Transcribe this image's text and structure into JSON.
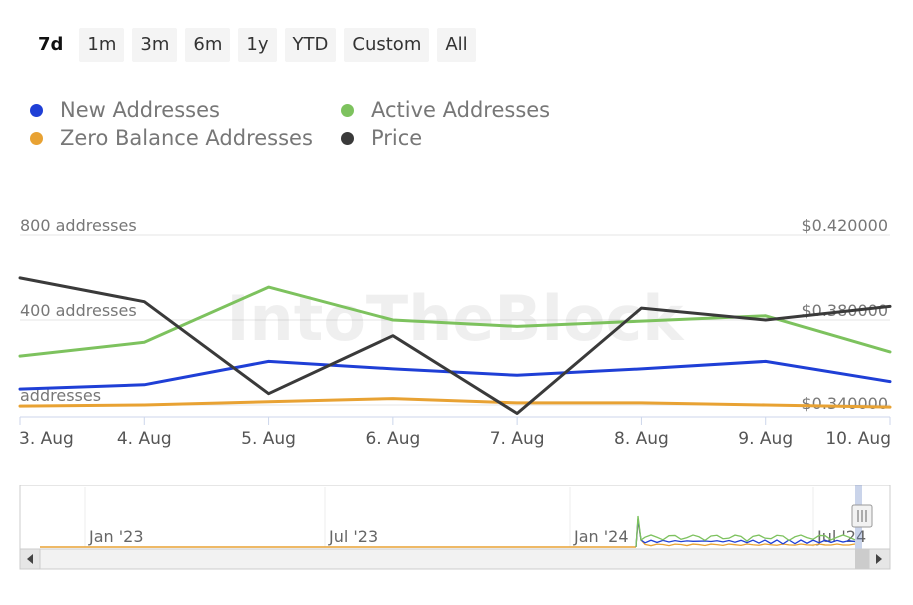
{
  "ranges": {
    "items": [
      "7d",
      "1m",
      "3m",
      "6m",
      "1y",
      "YTD",
      "Custom",
      "All"
    ],
    "active": "7d"
  },
  "legend": [
    {
      "name": "New Addresses",
      "color": "#1f3fd6"
    },
    {
      "name": "Active Addresses",
      "color": "#7dc25e"
    },
    {
      "name": "Zero Balance Addresses",
      "color": "#e8a233"
    },
    {
      "name": "Price",
      "color": "#3a3a3a"
    }
  ],
  "chart_data": {
    "type": "line",
    "watermark": "IntoTheBlock",
    "x": [
      "3. Aug",
      "4. Aug",
      "5. Aug",
      "6. Aug",
      "7. Aug",
      "8. Aug",
      "9. Aug",
      "10. Aug"
    ],
    "y_left": {
      "ticks": [
        "800 addresses",
        "400 addresses",
        "addresses"
      ],
      "ylim": [
        0,
        800
      ]
    },
    "y_right": {
      "ticks": [
        "$0.420000",
        "$0.380000",
        "$0.340000"
      ],
      "ylim": [
        0.34,
        0.42
      ]
    },
    "series": [
      {
        "name": "Active Addresses",
        "axis": "left",
        "color": "#7dc25e",
        "values": [
          230,
          295,
          555,
          400,
          370,
          395,
          420,
          250
        ]
      },
      {
        "name": "New Addresses",
        "axis": "left",
        "color": "#1f3fd6",
        "values": [
          75,
          95,
          205,
          170,
          140,
          170,
          205,
          110
        ]
      },
      {
        "name": "Zero Balance Addresses",
        "axis": "left",
        "color": "#e8a233",
        "values": [
          -5,
          0,
          15,
          30,
          10,
          10,
          0,
          -10
        ]
      },
      {
        "name": "Price",
        "axis": "right",
        "color": "#3a3a3a",
        "values": [
          0.3998,
          0.3886,
          0.3453,
          0.3726,
          0.336,
          0.3856,
          0.38,
          0.3864
        ]
      }
    ],
    "grid": true,
    "legend_position": "top"
  },
  "navigator": {
    "labels": [
      "Jan '23",
      "Jul '23",
      "Jan '24",
      "Jul '24"
    ],
    "handle_icon": "grip-icon",
    "scroll_left_icon": "arrow-left-icon",
    "scroll_right_icon": "arrow-right-icon",
    "colors": {
      "green": "#7dc25e",
      "blue": "#1f3fd6",
      "orange": "#e8a233",
      "border": "#cccccc"
    }
  }
}
